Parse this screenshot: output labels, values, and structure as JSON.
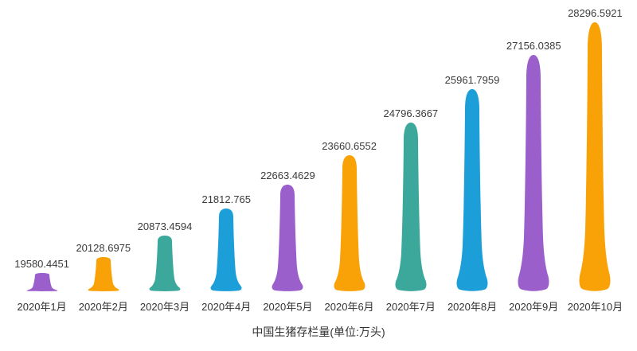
{
  "chart_data": {
    "type": "bar",
    "subtype": "pictorial-teardrop",
    "title": "中国生猪存栏量(单位:万头)",
    "xlabel": "",
    "ylabel": "",
    "categories": [
      "2020年1月",
      "2020年2月",
      "2020年3月",
      "2020年4月",
      "2020年5月",
      "2020年6月",
      "2020年7月",
      "2020年8月",
      "2020年9月",
      "2020年10月"
    ],
    "values": [
      19580.4451,
      20128.6975,
      20873.4594,
      21812.765,
      22663.4629,
      23660.6552,
      24796.3667,
      25961.7959,
      27156.0385,
      28296.5921
    ],
    "value_labels": [
      "19580.4451",
      "20128.6975",
      "20873.4594",
      "21812.765",
      "22663.4629",
      "23660.6552",
      "24796.3667",
      "25961.7959",
      "27156.0385",
      "28296.5921"
    ],
    "ylim": [
      18950,
      28950
    ],
    "grid": false,
    "legend_position": "none",
    "colors": [
      "#9B5FCB",
      "#F9A208",
      "#3BA89B",
      "#1C9FD8"
    ],
    "label_color": "#3a3a3a",
    "axis_label_color": "#333333",
    "title_color": "#333333",
    "background": "#ffffff"
  }
}
